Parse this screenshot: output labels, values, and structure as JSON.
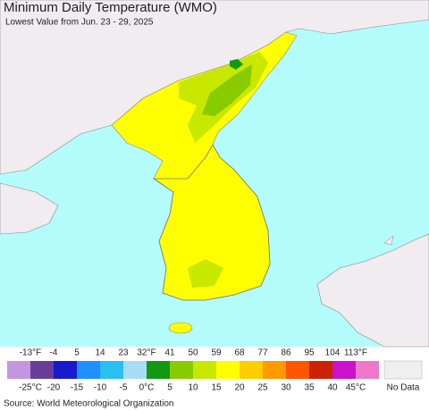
{
  "title": "Minimum Daily Temperature (WMO)",
  "subtitle": "Lowest Value from Jun. 23 - 29, 2025",
  "legend": {
    "colors": [
      "#c397dd",
      "#6a3d9a",
      "#1a1acd",
      "#1e90ff",
      "#29bff0",
      "#a8dcf5",
      "#119911",
      "#88cc00",
      "#c8e800",
      "#ffff00",
      "#ffcc00",
      "#ff9900",
      "#ff5500",
      "#cc2200",
      "#cc11cc",
      "#ee77cc"
    ],
    "labels_f": [
      "-13°F",
      "-4",
      "5",
      "14",
      "23",
      "32°F",
      "41",
      "50",
      "59",
      "68",
      "77",
      "86",
      "95",
      "104",
      "113°F"
    ],
    "labels_c": [
      "-25°C",
      "-20",
      "-15",
      "-10",
      "-5",
      "0°C",
      "5",
      "10",
      "15",
      "20",
      "25",
      "30",
      "35",
      "40",
      "45°C"
    ],
    "no_data_label": "No Data",
    "no_data_color": "#f0eef0"
  },
  "source": "Source: World Meteorological Organization"
}
